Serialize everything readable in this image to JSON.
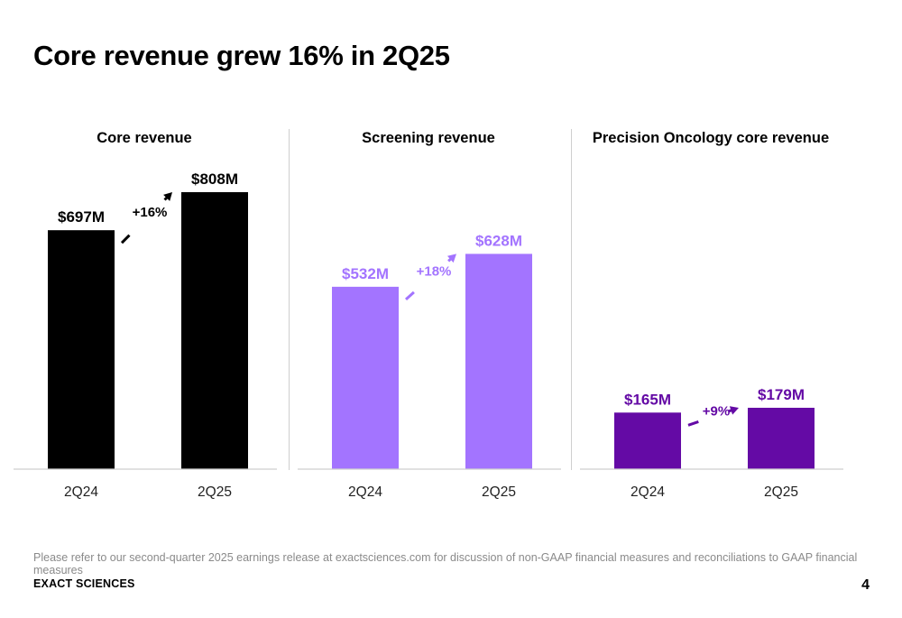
{
  "title": "Core revenue grew 16% in 2Q25",
  "footnote": "Please refer to our second-quarter 2025 earnings release at exactsciences.com for discussion of non-GAAP financial measures and reconciliations to GAAP financial measures",
  "brand": "EXACT SCIENCES",
  "page_number": "4",
  "chart_data": [
    {
      "type": "bar",
      "title": "Core revenue",
      "categories": [
        "2Q24",
        "2Q25"
      ],
      "values": [
        697,
        808
      ],
      "unit": "$M",
      "value_labels": [
        "$697M",
        "$808M"
      ],
      "growth_label": "+16%",
      "color": "#000000",
      "label_color": "#000000",
      "ylim": [
        0,
        808
      ]
    },
    {
      "type": "bar",
      "title": "Screening revenue",
      "categories": [
        "2Q24",
        "2Q25"
      ],
      "values": [
        532,
        628
      ],
      "unit": "$M",
      "value_labels": [
        "$532M",
        "$628M"
      ],
      "growth_label": "+18%",
      "color": "#a374ff",
      "label_color": "#a374ff",
      "ylim": [
        0,
        808
      ]
    },
    {
      "type": "bar",
      "title": "Precision Oncology core revenue",
      "categories": [
        "2Q24",
        "2Q25"
      ],
      "values": [
        165,
        179
      ],
      "unit": "$M",
      "value_labels": [
        "$165M",
        "$179M"
      ],
      "growth_label": "+9%",
      "color": "#640aa5",
      "label_color": "#640aa5",
      "ylim": [
        0,
        808
      ]
    }
  ]
}
